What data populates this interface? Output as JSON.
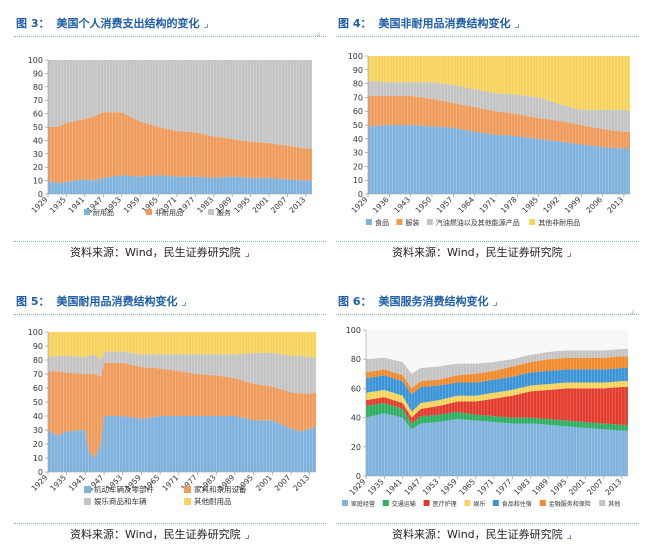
{
  "chart_data": [
    {
      "id": "c1",
      "type": "area",
      "number": "图 3：",
      "title": "美国个人消费支出结构的变化",
      "title_mark": "⌟",
      "ylim": [
        0,
        100
      ],
      "yticks": [
        "0",
        "10",
        "20",
        "30",
        "40",
        "50",
        "60",
        "70",
        "80",
        "90",
        "100"
      ],
      "x_start": 1929,
      "x_end": 2015,
      "xticks": [
        "1929",
        "1935",
        "1941",
        "1947",
        "1953",
        "1959",
        "1965",
        "1971",
        "1977",
        "1983",
        "1989",
        "1995",
        "2001",
        "2007",
        "2013"
      ],
      "legend": [
        {
          "name": "耐用品",
          "color": "#7fb2dd"
        },
        {
          "name": "非耐用品",
          "color": "#ef9b5c"
        },
        {
          "name": "服务",
          "color": "#c4c4c4"
        }
      ],
      "series_anchor_years": [
        1929,
        1932,
        1935,
        1941,
        1944,
        1947,
        1953,
        1959,
        1965,
        1971,
        1977,
        1983,
        1989,
        1995,
        2001,
        2007,
        2013,
        2015
      ],
      "series": [
        {
          "name": "耐用品",
          "color": "#7fb2dd",
          "values": [
            10,
            8,
            9,
            11,
            10,
            12,
            14,
            13,
            14,
            13,
            13,
            12,
            13,
            12,
            12,
            11,
            10,
            10
          ]
        },
        {
          "name": "非耐用品",
          "color": "#ef9b5c",
          "values": [
            40,
            42,
            44,
            45,
            48,
            49,
            47,
            41,
            36,
            34,
            33,
            31,
            28,
            27,
            26,
            25,
            24,
            24
          ]
        },
        {
          "name": "服务",
          "color": "#c4c4c4",
          "values": [
            50,
            50,
            47,
            44,
            42,
            39,
            39,
            46,
            50,
            53,
            54,
            57,
            59,
            61,
            62,
            64,
            66,
            66
          ]
        }
      ],
      "source": "资料来源：Wind，民生证券研究院",
      "source_mark": "⌟"
    },
    {
      "id": "c2",
      "type": "area",
      "number": "图 4：",
      "title": "美国非耐用品消费结构变化",
      "title_mark": "⌟",
      "ylim": [
        0,
        100
      ],
      "yticks": [
        "0",
        "10",
        "20",
        "30",
        "40",
        "50",
        "60",
        "70",
        "80",
        "90",
        "100"
      ],
      "x_start": 1929,
      "x_end": 2015,
      "xticks": [
        "1929",
        "1936",
        "1943",
        "1950",
        "1957",
        "1964",
        "1971",
        "1978",
        "1985",
        "1992",
        "1999",
        "2006",
        "2013"
      ],
      "legend": [
        {
          "name": "食品",
          "color": "#7fb2dd"
        },
        {
          "name": "服装",
          "color": "#ef9b5c"
        },
        {
          "name": "汽油燃油以及其他能源产品",
          "color": "#c4c4c4"
        },
        {
          "name": "其他非耐用品",
          "color": "#f6d35c"
        }
      ],
      "series_anchor_years": [
        1929,
        1936,
        1943,
        1950,
        1957,
        1964,
        1971,
        1978,
        1985,
        1992,
        1999,
        2006,
        2013,
        2015
      ],
      "series": [
        {
          "name": "食品",
          "color": "#7fb2dd",
          "values": [
            49,
            50,
            50,
            49,
            48,
            45,
            43,
            42,
            40,
            38,
            36,
            34,
            33,
            33
          ]
        },
        {
          "name": "服装",
          "color": "#ef9b5c",
          "values": [
            22,
            21,
            21,
            20,
            18,
            18,
            17,
            16,
            15,
            15,
            14,
            13,
            12,
            12
          ]
        },
        {
          "name": "汽油燃油以及其他能源产品",
          "color": "#c4c4c4",
          "values": [
            11,
            10,
            10,
            12,
            13,
            13,
            13,
            14,
            15,
            12,
            11,
            14,
            16,
            15
          ]
        },
        {
          "name": "其他非耐用品",
          "color": "#f6d35c",
          "values": [
            18,
            19,
            19,
            19,
            21,
            24,
            27,
            28,
            30,
            35,
            39,
            39,
            39,
            40
          ]
        }
      ],
      "source": "资料来源：Wind，民生证券研究院",
      "source_mark": "⌟"
    },
    {
      "id": "c3",
      "type": "area",
      "number": "图 5：",
      "title": "美国耐用品消费结构变化",
      "title_mark": "⌟",
      "ylim": [
        0,
        100
      ],
      "yticks": [
        "0",
        "10",
        "20",
        "30",
        "40",
        "50",
        "60",
        "70",
        "80",
        "90",
        "100"
      ],
      "x_start": 1929,
      "x_end": 2015,
      "xticks": [
        "1929",
        "1935",
        "1941",
        "1947",
        "1953",
        "1959",
        "1965",
        "1971",
        "1977",
        "1983",
        "1989",
        "1995",
        "2001",
        "2007",
        "2013"
      ],
      "legend": [
        {
          "name": "机动车辆及零部件",
          "color": "#7fb2dd"
        },
        {
          "name": "家具和家用设备",
          "color": "#ef9b5c"
        },
        {
          "name": "娱乐商品和车辆",
          "color": "#c4c4c4"
        },
        {
          "name": "其他耐用品",
          "color": "#f6d35c"
        }
      ],
      "series_anchor_years": [
        1929,
        1932,
        1935,
        1941,
        1942,
        1944,
        1946,
        1947,
        1953,
        1959,
        1965,
        1971,
        1977,
        1983,
        1989,
        1995,
        2001,
        2007,
        2010,
        2013,
        2015
      ],
      "series": [
        {
          "name": "机动车辆及零部件",
          "color": "#7fb2dd",
          "values": [
            30,
            26,
            29,
            30,
            15,
            10,
            20,
            40,
            40,
            38,
            40,
            40,
            40,
            40,
            40,
            37,
            37,
            31,
            29,
            31,
            32
          ]
        },
        {
          "name": "家具和家用设备",
          "color": "#ef9b5c",
          "values": [
            42,
            46,
            42,
            40,
            55,
            60,
            48,
            38,
            38,
            37,
            34,
            32,
            30,
            29,
            27,
            26,
            24,
            26,
            27,
            25,
            25
          ]
        },
        {
          "name": "娱乐商品和车辆",
          "color": "#c4c4c4",
          "values": [
            10,
            11,
            12,
            12,
            13,
            14,
            12,
            8,
            8,
            9,
            10,
            12,
            14,
            15,
            17,
            22,
            24,
            26,
            27,
            26,
            25
          ]
        },
        {
          "name": "其他耐用品",
          "color": "#f6d35c",
          "values": [
            18,
            17,
            17,
            18,
            17,
            16,
            20,
            14,
            14,
            16,
            16,
            16,
            16,
            16,
            16,
            15,
            15,
            17,
            17,
            18,
            18
          ]
        }
      ],
      "source": "资料来源：Wind，民生证券研究院",
      "source_mark": "⌟"
    },
    {
      "id": "c4",
      "type": "area",
      "number": "图 6：",
      "title": "美国服务消费结构变化",
      "title_mark": "⌟",
      "ylim": [
        0,
        100
      ],
      "yticks": [
        "0",
        "20",
        "40",
        "60",
        "80",
        "100"
      ],
      "x_start": 1929,
      "x_end": 2015,
      "xticks": [
        "1929",
        "1935",
        "1941",
        "1947",
        "1953",
        "1959",
        "1965",
        "1971",
        "1977",
        "1983",
        "1989",
        "1995",
        "2001",
        "2007",
        "2013"
      ],
      "legend": [
        {
          "name": "家庭经营",
          "color": "#7fb2dd"
        },
        {
          "name": "交通运输",
          "color": "#2eae62"
        },
        {
          "name": "医疗护理",
          "color": "#e23b2e"
        },
        {
          "name": "娱乐",
          "color": "#f6d35c"
        },
        {
          "name": "食品和住宿",
          "color": "#3a93d6"
        },
        {
          "name": "金融服务和保险",
          "color": "#f08a2c"
        },
        {
          "name": "其他",
          "color": "#c4c4c4"
        }
      ],
      "series_anchor_years": [
        1929,
        1935,
        1941,
        1944,
        1947,
        1953,
        1959,
        1965,
        1971,
        1977,
        1983,
        1989,
        1995,
        2001,
        2007,
        2013,
        2015
      ],
      "series": [
        {
          "name": "家庭经营",
          "color": "#7fb2dd",
          "values": [
            40,
            43,
            40,
            32,
            36,
            37,
            39,
            38,
            37,
            36,
            36,
            35,
            34,
            33,
            32,
            31,
            31
          ]
        },
        {
          "name": "交通运输",
          "color": "#2eae62",
          "values": [
            8,
            7,
            6,
            4,
            5,
            5,
            5,
            4,
            4,
            4,
            4,
            4,
            4,
            4,
            4,
            4,
            4
          ]
        },
        {
          "name": "医疗护理",
          "color": "#e23b2e",
          "values": [
            4,
            4,
            4,
            4,
            5,
            6,
            7,
            9,
            12,
            15,
            18,
            20,
            22,
            23,
            24,
            26,
            26
          ]
        },
        {
          "name": "娱乐",
          "color": "#f6d35c",
          "values": [
            5,
            5,
            5,
            4,
            4,
            4,
            4,
            4,
            4,
            4,
            4,
            4,
            4,
            4,
            4,
            4,
            4
          ]
        },
        {
          "name": "食品和住宿",
          "color": "#3a93d6",
          "values": [
            10,
            10,
            10,
            12,
            11,
            10,
            9,
            9,
            9,
            9,
            9,
            9,
            9,
            9,
            9,
            9,
            9
          ]
        },
        {
          "name": "金融服务和保险",
          "color": "#f08a2c",
          "values": [
            4,
            4,
            4,
            4,
            4,
            4,
            5,
            6,
            6,
            7,
            7,
            8,
            8,
            8,
            8,
            8,
            8
          ]
        },
        {
          "name": "其他",
          "color": "#c4c4c4",
          "values": [
            9,
            8,
            9,
            10,
            9,
            9,
            8,
            7,
            6,
            5,
            5,
            5,
            5,
            5,
            5,
            5,
            5
          ]
        }
      ],
      "source": "资料来源：Wind，民生证券研究院",
      "source_mark": "⌟"
    }
  ],
  "page_marks": {
    "corner": "⌟"
  }
}
